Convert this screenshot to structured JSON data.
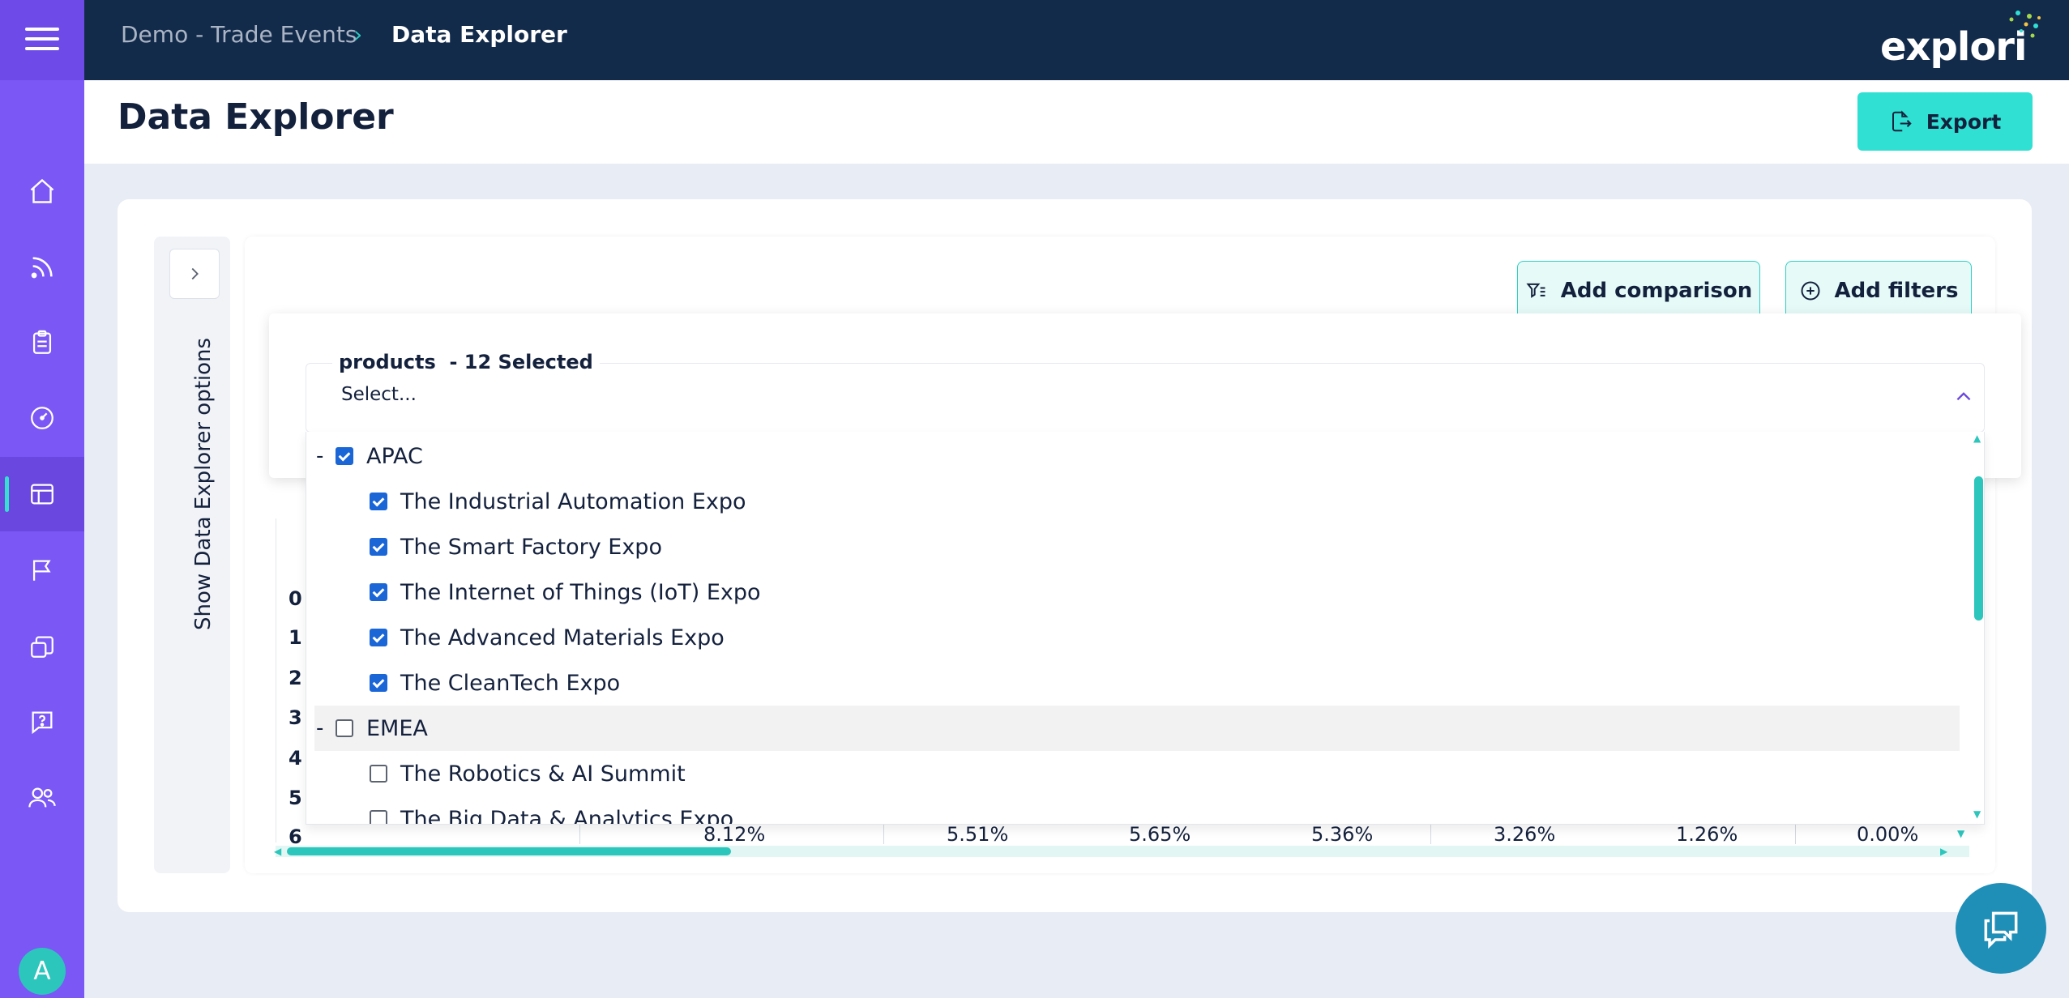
{
  "header": {
    "breadcrumb_parent": "Demo - Trade Events",
    "breadcrumb_sep": "›",
    "breadcrumb_current": "Data Explorer",
    "logo_text": "explori"
  },
  "page": {
    "title": "Data Explorer",
    "export_label": "Export"
  },
  "sidebar": {
    "avatar_initial": "A",
    "icons": [
      "home-icon",
      "feed-icon",
      "clipboard-icon",
      "gauge-icon",
      "table-icon",
      "flag-icon",
      "layers-icon",
      "help-icon",
      "users-icon"
    ]
  },
  "explorer": {
    "show_options_label": "Show Data Explorer options",
    "add_comparison_label": "Add comparison",
    "add_filters_label": "Add filters"
  },
  "filter": {
    "field_label": "products",
    "selected_text": "  - 12 Selected",
    "placeholder": "Select...",
    "groups": [
      {
        "toggle": "-",
        "name": "APAC",
        "checked": true,
        "items": [
          {
            "label": "The Industrial Automation Expo",
            "checked": true
          },
          {
            "label": "The Smart Factory Expo",
            "checked": true
          },
          {
            "label": "The Internet of Things (IoT) Expo",
            "checked": true
          },
          {
            "label": "The Advanced Materials Expo",
            "checked": true
          },
          {
            "label": "The CleanTech Expo",
            "checked": true
          }
        ]
      },
      {
        "toggle": "-",
        "name": "EMEA",
        "checked": false,
        "items": [
          {
            "label": "The Robotics & AI Summit",
            "checked": false
          },
          {
            "label": "The Big Data & Analytics Expo",
            "checked": false
          }
        ]
      }
    ]
  },
  "table": {
    "row_labels": [
      "0",
      "1",
      "2",
      "3",
      "4",
      "5",
      "6"
    ],
    "row6_values": [
      "8.12%",
      "5.51%",
      "5.65%",
      "5.36%",
      "3.26%",
      "1.26%",
      "0.00%"
    ]
  },
  "colors": {
    "rail": "#7b57f5",
    "topbar": "#132b4b",
    "accent": "#2fe0d3",
    "checkbox": "#1a66d6"
  }
}
